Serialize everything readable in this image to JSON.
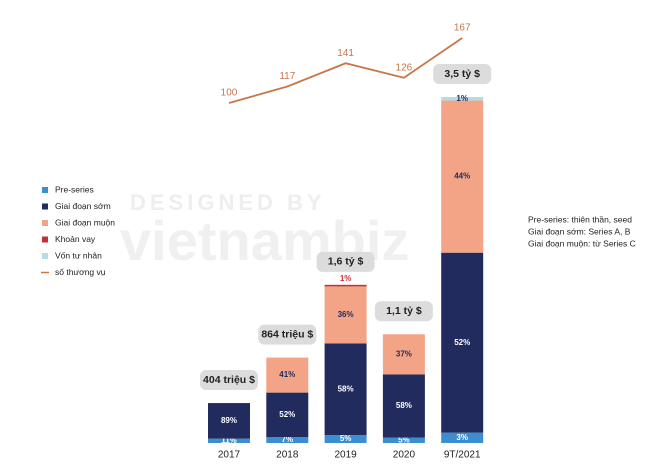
{
  "chart_data": {
    "type": "bar",
    "stacked": true,
    "categories": [
      "2017",
      "2018",
      "2019",
      "2020",
      "9T/2021"
    ],
    "totals": {
      "values": [
        404,
        864,
        1600,
        1100,
        3500
      ],
      "value_labels": [
        "404 triệu $",
        "864 triệu $",
        "1,6 tỷ $",
        "1,1 tỷ $",
        "3,5 tỷ $"
      ]
    },
    "ylim": [
      0,
      3500
    ],
    "y2lim": [
      0,
      200
    ],
    "series": [
      {
        "name": "Pre-series",
        "color": "#3b8fd0",
        "label_color": "#ffffff",
        "values": [
          11,
          7,
          5,
          5,
          3
        ],
        "value_labels": [
          "11%",
          "7%",
          "5%",
          "5%",
          "3%"
        ]
      },
      {
        "name": "Giai đoạn sớm",
        "color": "#222b5e",
        "label_color": "#ffffff",
        "values": [
          89,
          52,
          58,
          58,
          52
        ],
        "value_labels": [
          "89%",
          "52%",
          "58%",
          "58%",
          "52%"
        ]
      },
      {
        "name": "Giai đoạn muộn",
        "color": "#f3a487",
        "label_color": "#222b5e",
        "values": [
          null,
          41,
          36,
          37,
          44
        ],
        "value_labels": [
          null,
          "41%",
          "36%",
          "37%",
          "44%"
        ]
      },
      {
        "name": "Khoản vay",
        "color": "#c62f36",
        "label_color": "#c62f36",
        "values": [
          null,
          null,
          1,
          null,
          null
        ],
        "value_labels": [
          null,
          null,
          "1%",
          null,
          null
        ]
      },
      {
        "name": "Vốn tư nhân",
        "color": "#b3dde2",
        "label_color": "#222b5e",
        "values": [
          null,
          null,
          null,
          null,
          1
        ],
        "value_labels": [
          null,
          null,
          null,
          null,
          "1%"
        ]
      },
      {
        "name": "số thương vụ",
        "type": "line",
        "axis": "y2",
        "color": "#c8774a",
        "values": [
          100,
          117,
          141,
          126,
          167
        ]
      }
    ],
    "note": [
      "Pre-series: thiên thần, seed",
      "Giai đoạn sớm: Series A, B",
      "Giai đoạn muộn: từ Series C"
    ],
    "watermark": [
      "DESIGNED BY",
      "vietnambiz"
    ]
  }
}
